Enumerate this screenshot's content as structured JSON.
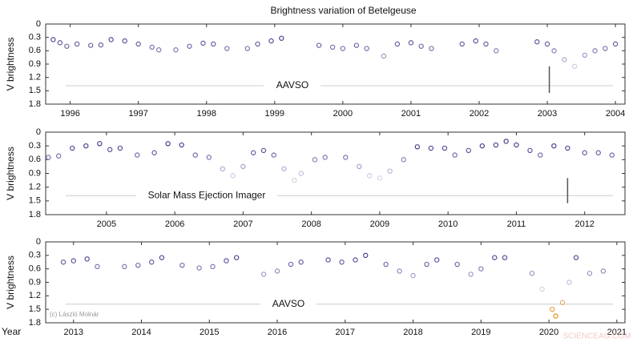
{
  "chart_data": [
    {
      "type": "scatter",
      "title": "Brightness variation of Betelgeuse",
      "ylabel": "V brightness",
      "annotation": "AAVSO",
      "x": [
        1995.75,
        1995.85,
        1995.95,
        1996.1,
        1996.3,
        1996.45,
        1996.6,
        1996.8,
        1997.0,
        1997.2,
        1997.3,
        1997.55,
        1997.75,
        1997.95,
        1998.1,
        1998.3,
        1998.6,
        1998.75,
        1998.95,
        1999.1,
        1999.65,
        1999.85,
        2000.0,
        2000.2,
        2000.35,
        2000.6,
        2000.8,
        2001.0,
        2001.15,
        2001.3,
        2001.75,
        2001.95,
        2002.1,
        2002.25,
        2002.85,
        2003.0,
        2003.1,
        2003.25,
        2003.4,
        2003.55,
        2003.7,
        2003.85,
        2004.0
      ],
      "values": [
        0.35,
        0.42,
        0.5,
        0.45,
        0.48,
        0.47,
        0.35,
        0.38,
        0.45,
        0.52,
        0.58,
        0.58,
        0.5,
        0.43,
        0.45,
        0.55,
        0.55,
        0.45,
        0.38,
        0.32,
        0.48,
        0.52,
        0.55,
        0.48,
        0.55,
        0.72,
        0.45,
        0.42,
        0.5,
        0.55,
        0.45,
        0.38,
        0.45,
        0.6,
        0.4,
        0.45,
        0.6,
        0.8,
        0.95,
        0.7,
        0.6,
        0.55,
        0.45
      ],
      "xlim": [
        1995.64,
        2004.14
      ],
      "xticks": [
        1996,
        1997,
        1998,
        1999,
        2000,
        2001,
        2002,
        2003,
        2004
      ],
      "ylim": [
        1.8,
        0
      ],
      "yticks": [
        0,
        0.3,
        0.6,
        0.9,
        1.2,
        1.5,
        1.8
      ],
      "reference_bar": {
        "x": 2003.03,
        "range": [
          0.95,
          1.55
        ]
      },
      "color_scale": {
        "stops": [
          0.3,
          1.0,
          1.6
        ],
        "colors": [
          "#4a3d8c",
          "#d9d5ee",
          "#e8901e"
        ]
      }
    },
    {
      "type": "scatter",
      "ylabel": "V brightness",
      "annotation": "Solar Mass Ejection Imager",
      "x": [
        2004.15,
        2004.3,
        2004.5,
        2004.7,
        2004.9,
        2005.05,
        2005.2,
        2005.45,
        2005.7,
        2005.9,
        2006.1,
        2006.3,
        2006.5,
        2006.7,
        2006.85,
        2007.0,
        2007.15,
        2007.3,
        2007.45,
        2007.6,
        2007.75,
        2007.85,
        2008.05,
        2008.2,
        2008.5,
        2008.7,
        2008.85,
        2009.0,
        2009.15,
        2009.35,
        2009.55,
        2009.75,
        2009.95,
        2010.1,
        2010.3,
        2010.5,
        2010.7,
        2010.85,
        2011.0,
        2011.2,
        2011.35,
        2011.55,
        2011.75,
        2012.0,
        2012.2,
        2012.4
      ],
      "values": [
        0.55,
        0.52,
        0.35,
        0.3,
        0.25,
        0.38,
        0.35,
        0.5,
        0.45,
        0.25,
        0.28,
        0.5,
        0.55,
        0.8,
        0.95,
        0.75,
        0.45,
        0.4,
        0.5,
        0.8,
        1.05,
        0.9,
        0.6,
        0.55,
        0.55,
        0.75,
        0.95,
        1.0,
        0.85,
        0.6,
        0.32,
        0.35,
        0.35,
        0.5,
        0.4,
        0.3,
        0.28,
        0.2,
        0.28,
        0.4,
        0.5,
        0.3,
        0.35,
        0.45,
        0.45,
        0.5
      ],
      "xlim": [
        2004.11,
        2012.59
      ],
      "xticks": [
        2005,
        2006,
        2007,
        2008,
        2009,
        2010,
        2011,
        2012
      ],
      "ylim": [
        1.8,
        0
      ],
      "yticks": [
        0,
        0.3,
        0.6,
        0.9,
        1.2,
        1.5,
        1.8
      ],
      "reference_bar": {
        "x": 2011.75,
        "range": [
          1.0,
          1.55
        ]
      },
      "color_scale": {
        "stops": [
          0.3,
          1.0,
          1.6
        ],
        "colors": [
          "#4a3d8c",
          "#d9d5ee",
          "#e8901e"
        ]
      }
    },
    {
      "type": "scatter",
      "ylabel": "V brightness",
      "xlabel": "Year",
      "annotation": "AAVSO",
      "credit": "(c) László Molnár",
      "watermark": "SCIENCEAG.COM",
      "x": [
        2012.85,
        2013.0,
        2013.2,
        2013.35,
        2013.75,
        2013.95,
        2014.15,
        2014.3,
        2014.6,
        2014.85,
        2015.05,
        2015.25,
        2015.4,
        2015.8,
        2016.0,
        2016.2,
        2016.35,
        2016.75,
        2016.95,
        2017.15,
        2017.3,
        2017.6,
        2017.8,
        2018.0,
        2018.2,
        2018.35,
        2018.65,
        2018.85,
        2019.0,
        2019.2,
        2019.35,
        2019.75,
        2019.9,
        2020.05,
        2020.1,
        2020.2,
        2020.3,
        2020.4,
        2020.6,
        2020.8
      ],
      "values": [
        0.45,
        0.42,
        0.38,
        0.55,
        0.55,
        0.52,
        0.45,
        0.35,
        0.52,
        0.58,
        0.55,
        0.42,
        0.35,
        0.72,
        0.65,
        0.5,
        0.45,
        0.4,
        0.45,
        0.4,
        0.3,
        0.5,
        0.65,
        0.75,
        0.5,
        0.4,
        0.5,
        0.72,
        0.6,
        0.35,
        0.35,
        0.7,
        1.05,
        1.5,
        1.65,
        1.35,
        0.9,
        0.35,
        0.7,
        0.65
      ],
      "xlim": [
        2012.59,
        2021.12
      ],
      "xticks": [
        2013,
        2014,
        2015,
        2016,
        2017,
        2018,
        2019,
        2020,
        2021
      ],
      "ylim": [
        1.8,
        0
      ],
      "yticks": [
        0,
        0.3,
        0.6,
        0.9,
        1.2,
        1.5,
        1.8
      ],
      "color_scale": {
        "stops": [
          0.3,
          1.0,
          1.6
        ],
        "colors": [
          "#4a3d8c",
          "#d9d5ee",
          "#e8901e"
        ]
      }
    }
  ]
}
